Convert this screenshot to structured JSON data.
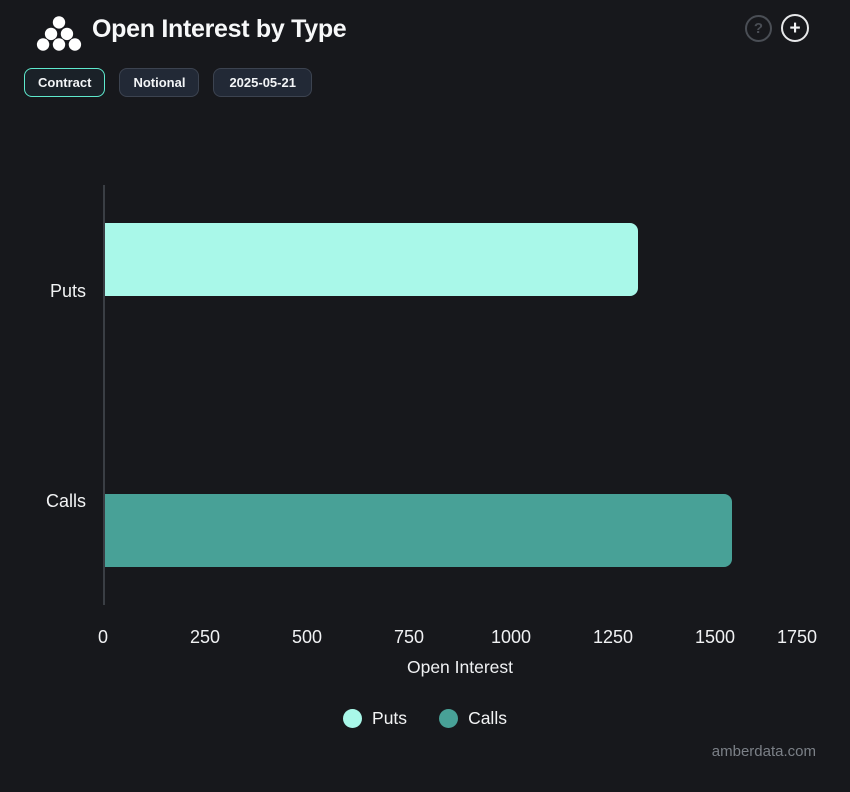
{
  "header": {
    "title": "Open Interest by Type",
    "help_icon_label": "?",
    "add_icon_label": "+"
  },
  "toolbar": {
    "contract_label": "Contract",
    "notional_label": "Notional",
    "date": "2025-05-21",
    "active_toggle": "Contract"
  },
  "chart_data": {
    "type": "bar",
    "orientation": "horizontal",
    "title": "Open Interest by Type",
    "categories": [
      "Puts",
      "Calls"
    ],
    "series": [
      {
        "name": "Puts",
        "value": 1310,
        "color": "#a9f8e9"
      },
      {
        "name": "Calls",
        "value": 1540,
        "color": "#48a197"
      }
    ],
    "xlabel": "Open Interest",
    "ylabel": "",
    "xlim": [
      0,
      1750
    ],
    "xticks": [
      0,
      250,
      500,
      750,
      1000,
      1250,
      1500,
      1750
    ],
    "grid": false,
    "legend_position": "bottom"
  },
  "legend": {
    "items": [
      {
        "label": "Puts",
        "color": "#a9f8e9"
      },
      {
        "label": "Calls",
        "color": "#48a197"
      }
    ]
  },
  "footer": {
    "watermark": "amberdata.com"
  },
  "colors": {
    "background": "#17181c",
    "puts": "#a9f8e9",
    "calls": "#48a197",
    "active_chip_border": "#5ee9cd",
    "axis_line": "#3a3e44"
  }
}
